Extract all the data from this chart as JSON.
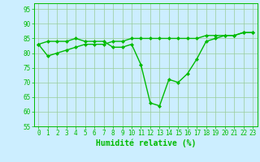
{
  "line1_x": [
    0,
    1,
    2,
    3,
    4,
    5,
    6,
    7,
    8,
    9,
    10,
    11,
    12,
    13,
    14,
    15,
    16,
    17,
    18,
    19,
    20,
    21,
    22,
    23
  ],
  "line1_y": [
    83,
    79,
    80,
    81,
    82,
    83,
    83,
    83,
    84,
    84,
    85,
    85,
    85,
    85,
    85,
    85,
    85,
    85,
    86,
    86,
    86,
    86,
    87,
    87
  ],
  "line2_x": [
    0,
    1,
    2,
    3,
    4,
    5,
    6,
    7,
    8,
    9,
    10,
    11,
    12,
    13,
    14,
    15,
    16,
    17,
    18,
    19,
    20,
    21,
    22,
    23
  ],
  "line2_y": [
    83,
    84,
    84,
    84,
    85,
    84,
    84,
    84,
    82,
    82,
    83,
    76,
    63,
    62,
    71,
    70,
    73,
    78,
    84,
    85,
    86,
    86,
    87,
    87
  ],
  "line_color": "#00bb00",
  "bg_color": "#cceeff",
  "grid_color": "#99cc99",
  "xlabel": "Humidité relative (%)",
  "ylim": [
    55,
    97
  ],
  "xlim": [
    -0.5,
    23.5
  ],
  "yticks": [
    55,
    60,
    65,
    70,
    75,
    80,
    85,
    90,
    95
  ],
  "xticks": [
    0,
    1,
    2,
    3,
    4,
    5,
    6,
    7,
    8,
    9,
    10,
    11,
    12,
    13,
    14,
    15,
    16,
    17,
    18,
    19,
    20,
    21,
    22,
    23
  ],
  "marker": "D",
  "markersize": 2.0,
  "linewidth": 1.0,
  "xlabel_fontsize": 7,
  "tick_fontsize": 5.5
}
